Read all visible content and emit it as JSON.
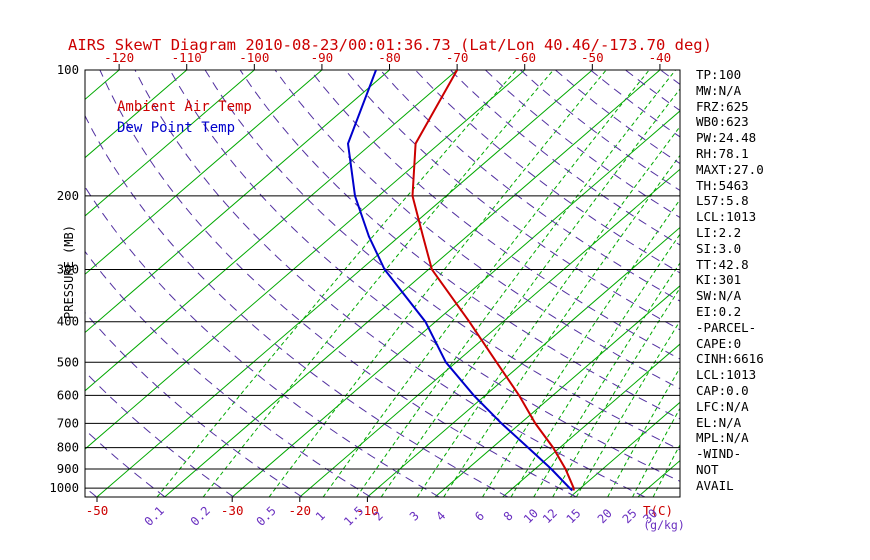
{
  "title": "AIRS SkewT Diagram 2010-08-23/00:01:36.73 (Lat/Lon 40.46/-173.70 deg)",
  "legend": {
    "temp": "Ambient Air Temp",
    "dewpoint": "Dew Point Temp"
  },
  "axes": {
    "y_label": "PRESSURE (MB)",
    "pressure_ticks": [
      100,
      200,
      300,
      400,
      500,
      600,
      700,
      800,
      900,
      1000
    ],
    "top_temp_ticks": [
      -120,
      -110,
      -100,
      -90,
      -80,
      -70,
      -60,
      -50,
      -40
    ],
    "bottom_temp_ticks": [
      -50,
      -30,
      -20,
      -10
    ],
    "bottom_temp_unit": "T(C)",
    "mixing_ratio_ticks": [
      0.1,
      0.2,
      0.5,
      1,
      1.5,
      2,
      3,
      4,
      6,
      8,
      10,
      12,
      15,
      20,
      25,
      30
    ],
    "mixing_ratio_unit": "(g/kg)"
  },
  "stats": [
    "TP:100",
    "MW:N/A",
    "FRZ:625",
    "WB0:623",
    "PW:24.48",
    "RH:78.1",
    "MAXT:27.0",
    "TH:5463",
    "L57:5.8",
    "LCL:1013",
    "LI:2.2",
    "SI:3.0",
    "TT:42.8",
    "KI:301",
    "SW:N/A",
    "EI:0.2",
    "-PARCEL-",
    "CAPE:0",
    "CINH:6616",
    "LCL:1013",
    "CAP:0.0",
    "LFC:N/A",
    "EL:N/A",
    "MPL:N/A",
    "-WIND-",
    "NOT",
    "AVAIL"
  ],
  "colors": {
    "temp": "#cc0000",
    "dewpoint": "#0000cc",
    "isoline_green": "#00a800",
    "adiabat_purple": "#5230a0",
    "mixing_label_purple": "#6a30c0",
    "axis_black": "#000000"
  },
  "chart_data": {
    "type": "line",
    "title": "AIRS SkewT Diagram 2010-08-23/00:01:36.73 (Lat/Lon 40.46/-173.70 deg)",
    "xlabel": "T(C)",
    "ylabel": "PRESSURE (MB)",
    "y_scale": "log",
    "y_range_mb": [
      100,
      1050
    ],
    "skew_deg": 45,
    "grid": "skewt (isotherms, dry adiabats, saturation mixing-ratio lines)",
    "isotherms_c": {
      "min": -120,
      "max": 30,
      "step": 10
    },
    "dry_adiabats_k": {
      "min": 220,
      "max": 470,
      "step": 10
    },
    "mixing_ratio_lines_gkg": [
      0.1,
      0.2,
      0.5,
      1,
      1.5,
      2,
      3,
      4,
      6,
      8,
      10,
      12,
      15,
      20,
      25,
      30,
      40
    ],
    "series": [
      {
        "name": "Ambient Air Temp",
        "color_key": "temp",
        "points_p_t": [
          [
            100,
            -70
          ],
          [
            150,
            -63.5
          ],
          [
            200,
            -55
          ],
          [
            250,
            -46.5
          ],
          [
            300,
            -39.5
          ],
          [
            400,
            -25
          ],
          [
            500,
            -14
          ],
          [
            600,
            -5
          ],
          [
            700,
            2.2
          ],
          [
            800,
            9
          ],
          [
            900,
            14.5
          ],
          [
            1000,
            19
          ],
          [
            1013,
            19.4
          ]
        ]
      },
      {
        "name": "Dew Point Temp",
        "color_key": "dewpoint",
        "points_p_t": [
          [
            100,
            -82
          ],
          [
            150,
            -73.5
          ],
          [
            200,
            -63.5
          ],
          [
            250,
            -54.5
          ],
          [
            300,
            -46.5
          ],
          [
            400,
            -31.5
          ],
          [
            500,
            -21.5
          ],
          [
            600,
            -11.7
          ],
          [
            700,
            -2.8
          ],
          [
            800,
            5.3
          ],
          [
            900,
            12.4
          ],
          [
            1000,
            18.4
          ],
          [
            1013,
            19.2
          ]
        ]
      }
    ]
  }
}
